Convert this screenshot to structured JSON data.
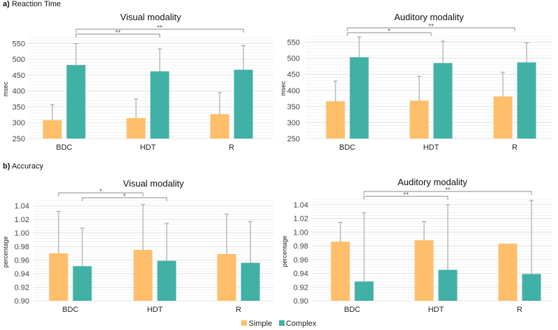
{
  "sections": [
    {
      "letter": "a)",
      "label": "Reaction Time"
    },
    {
      "letter": "b)",
      "label": "Accuracy"
    }
  ],
  "legend": [
    {
      "label": "Simple",
      "color": "#FFBE69"
    },
    {
      "label": "Complex",
      "color": "#41B0A5"
    }
  ],
  "chart_data": [
    {
      "type": "bar",
      "title": "Visual modality",
      "ylabel": "msec",
      "categories": [
        "BDC",
        "HDT",
        "R"
      ],
      "ylim": [
        250,
        575
      ],
      "yticks": [
        250,
        300,
        350,
        400,
        450,
        500,
        550
      ],
      "tick_format": 0,
      "series": [
        {
          "name": "Simple",
          "values": [
            308,
            315,
            327
          ],
          "error_top": [
            357,
            375,
            395
          ]
        },
        {
          "name": "Complex",
          "values": [
            482,
            462,
            467
          ],
          "error_top": [
            550,
            533,
            543
          ]
        }
      ],
      "significance": [
        {
          "from": [
            0,
            1
          ],
          "to": [
            1,
            1
          ],
          "label": "**",
          "level": 0
        },
        {
          "from": [
            0,
            1
          ],
          "to": [
            2,
            1
          ],
          "label": "**",
          "level": 1
        }
      ]
    },
    {
      "type": "bar",
      "title": "Auditory modality",
      "ylabel": "msec",
      "categories": [
        "BDC",
        "HDT",
        "R"
      ],
      "ylim": [
        250,
        575
      ],
      "yticks": [
        250,
        300,
        350,
        400,
        450,
        500,
        550
      ],
      "tick_format": 0,
      "series": [
        {
          "name": "Simple",
          "values": [
            366,
            368,
            381
          ],
          "error_top": [
            429,
            444,
            456
          ]
        },
        {
          "name": "Complex",
          "values": [
            503,
            485,
            487
          ],
          "error_top": [
            566,
            553,
            548
          ]
        }
      ],
      "significance": [
        {
          "from": [
            0,
            -1
          ],
          "to": [
            1,
            -1
          ],
          "label": "*",
          "level": 0
        },
        {
          "from": [
            0,
            -1
          ],
          "to": [
            2,
            -1
          ],
          "label": "**",
          "level": 1
        }
      ]
    },
    {
      "type": "bar",
      "title": "Visual modality",
      "ylabel": "percentage",
      "categories": [
        "BDC",
        "HDT",
        "R"
      ],
      "ylim": [
        0.9,
        1.05
      ],
      "yticks": [
        0.9,
        0.92,
        0.94,
        0.96,
        0.98,
        1.0,
        1.02,
        1.04
      ],
      "tick_format": 2,
      "series": [
        {
          "name": "Simple",
          "values": [
            0.97,
            0.975,
            0.969
          ],
          "error_top": [
            1.032,
            1.042,
            1.028
          ]
        },
        {
          "name": "Complex",
          "values": [
            0.951,
            0.959,
            0.956
          ],
          "error_top": [
            1.007,
            1.014,
            1.017
          ]
        }
      ],
      "significance": [
        {
          "from": [
            0,
            0
          ],
          "to": [
            1,
            0
          ],
          "label": "*",
          "level": 1
        },
        {
          "from": [
            0,
            1
          ],
          "to": [
            1,
            1
          ],
          "label": "*",
          "level": 0
        }
      ]
    },
    {
      "type": "bar",
      "title": "Auditory modality",
      "ylabel": "percentage",
      "categories": [
        "BDC",
        "HDT",
        "R"
      ],
      "ylim": [
        0.9,
        1.05
      ],
      "yticks": [
        0.9,
        0.92,
        0.94,
        0.96,
        0.98,
        1.0,
        1.02,
        1.04
      ],
      "tick_format": 2,
      "series": [
        {
          "name": "Simple",
          "values": [
            0.986,
            0.988,
            0.983
          ],
          "error_top": [
            1.014,
            1.015,
            null
          ]
        },
        {
          "name": "Complex",
          "values": [
            0.928,
            0.945,
            0.939
          ],
          "error_top": [
            1.028,
            1.04,
            1.046
          ]
        }
      ],
      "significance": [
        {
          "from": [
            0,
            1
          ],
          "to": [
            1,
            1
          ],
          "label": "**",
          "level": 0
        },
        {
          "from": [
            0,
            1
          ],
          "to": [
            2,
            1
          ],
          "label": "**",
          "level": 1
        }
      ]
    }
  ]
}
